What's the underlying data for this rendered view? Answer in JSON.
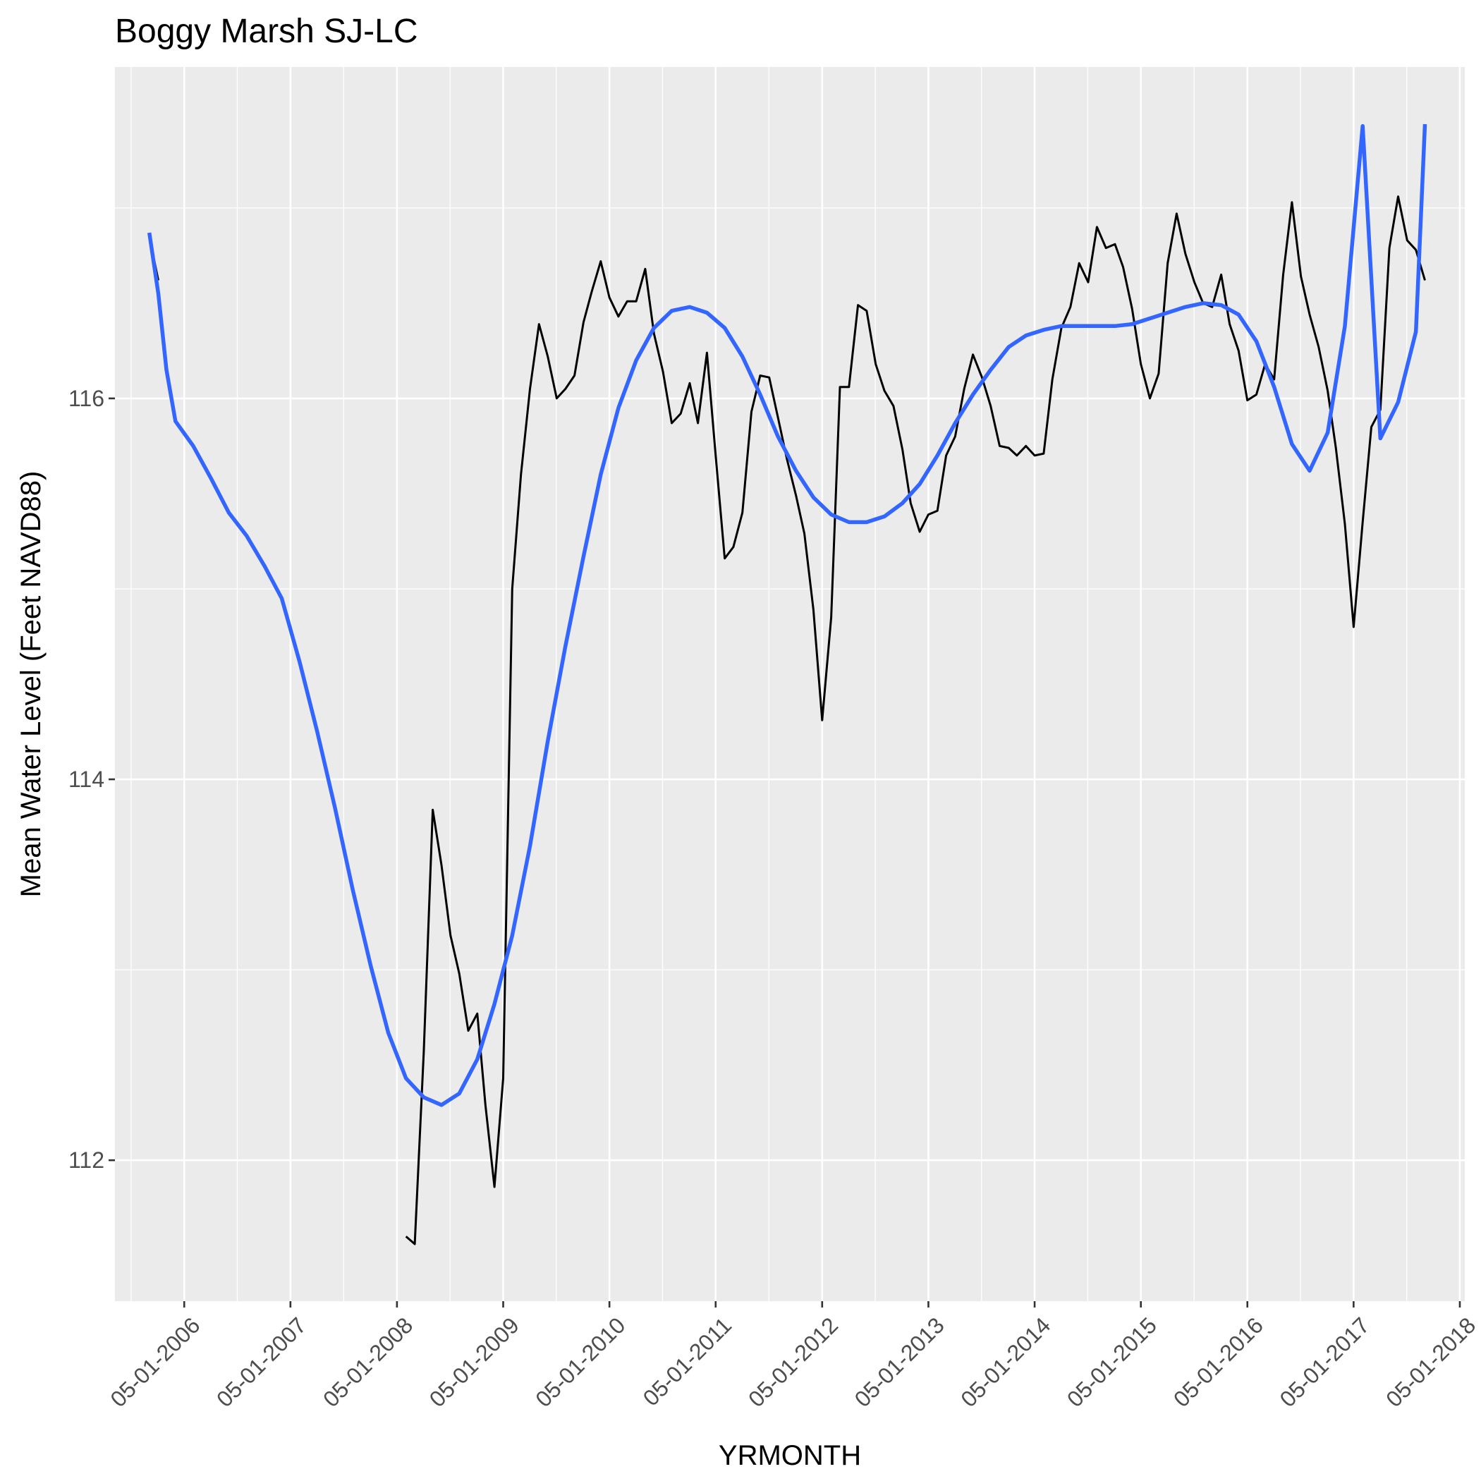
{
  "chart_data": {
    "type": "line",
    "title": "Boggy Marsh SJ-LC",
    "xlabel": "YRMONTH",
    "ylabel": "Mean Water Level (Feet NAVD88)",
    "x_type": "date",
    "x_ticks": [
      "2006-05-01",
      "2007-05-01",
      "2008-05-01",
      "2009-05-01",
      "2010-05-01",
      "2011-05-01",
      "2012-05-01",
      "2013-05-01",
      "2014-05-01",
      "2015-05-01",
      "2016-05-01",
      "2017-05-01",
      "2018-05-01"
    ],
    "x_tick_labels": [
      "05-01-2006",
      "05-01-2007",
      "05-01-2008",
      "05-01-2009",
      "05-01-2010",
      "05-01-2011",
      "05-01-2012",
      "05-01-2013",
      "05-01-2014",
      "05-01-2015",
      "05-01-2016",
      "05-01-2017",
      "05-01-2018"
    ],
    "x_range": [
      "2005-09-05",
      "2018-05-18"
    ],
    "y_ticks": [
      112,
      114,
      116
    ],
    "y_tick_labels": [
      "112",
      "114",
      "116"
    ],
    "ylim": [
      111.26,
      117.74
    ],
    "grid": true,
    "panel_background": "#ebebeb",
    "grid_color": "#ffffff",
    "series": [
      {
        "color": "#000000",
        "segments": [
          {
            "x": [
              "2006-01-01",
              "2006-02-01"
            ],
            "y": [
              116.85,
              116.62
            ]
          },
          {
            "x": [
              "2008-06-01",
              "2008-07-01",
              "2008-08-01",
              "2008-09-01",
              "2008-10-01",
              "2008-11-01",
              "2008-12-01",
              "2009-01-01",
              "2009-02-01",
              "2009-03-01",
              "2009-04-01",
              "2009-05-01",
              "2009-06-01",
              "2009-07-01",
              "2009-08-01",
              "2009-09-01",
              "2009-10-01",
              "2009-11-01",
              "2009-12-01",
              "2010-01-01",
              "2010-02-01",
              "2010-03-01",
              "2010-04-01",
              "2010-05-01",
              "2010-06-01",
              "2010-07-01",
              "2010-08-01",
              "2010-09-01",
              "2010-10-01",
              "2010-11-01",
              "2010-12-01",
              "2011-01-01",
              "2011-02-01",
              "2011-03-01",
              "2011-04-01",
              "2011-05-01",
              "2011-06-01",
              "2011-07-01",
              "2011-08-01",
              "2011-09-01",
              "2011-10-01",
              "2011-11-01",
              "2011-12-01",
              "2012-01-01",
              "2012-02-01",
              "2012-03-01",
              "2012-04-01",
              "2012-05-01",
              "2012-06-01",
              "2012-07-01",
              "2012-08-01",
              "2012-09-01",
              "2012-10-01",
              "2012-11-01",
              "2012-12-01",
              "2013-01-01",
              "2013-02-01",
              "2013-03-01",
              "2013-04-01",
              "2013-05-01",
              "2013-06-01",
              "2013-07-01",
              "2013-08-01",
              "2013-09-01",
              "2013-10-01",
              "2013-11-01",
              "2013-12-01",
              "2014-01-01",
              "2014-02-01",
              "2014-03-01",
              "2014-04-01",
              "2014-05-01",
              "2014-06-01",
              "2014-07-01",
              "2014-08-01",
              "2014-09-01",
              "2014-10-01",
              "2014-11-01",
              "2014-12-01",
              "2015-01-01",
              "2015-02-01",
              "2015-03-01",
              "2015-04-01",
              "2015-05-01",
              "2015-06-01",
              "2015-07-01",
              "2015-08-01",
              "2015-09-01",
              "2015-10-01",
              "2015-11-01",
              "2015-12-01",
              "2016-01-01",
              "2016-02-01",
              "2016-03-01",
              "2016-04-01",
              "2016-05-01",
              "2016-06-01",
              "2016-07-01",
              "2016-08-01",
              "2016-09-01",
              "2016-10-01",
              "2016-11-01",
              "2016-12-01",
              "2017-01-01",
              "2017-02-01",
              "2017-03-01",
              "2017-04-01",
              "2017-05-01",
              "2017-06-01",
              "2017-07-01",
              "2017-08-01",
              "2017-09-01",
              "2017-10-01",
              "2017-11-01",
              "2017-12-01",
              "2018-01-01"
            ],
            "y": [
              111.6,
              111.56,
              112.57,
              113.84,
              113.55,
              113.18,
              112.98,
              112.68,
              112.77,
              112.29,
              111.86,
              112.43,
              115.0,
              115.6,
              116.05,
              116.39,
              116.22,
              116.0,
              116.05,
              116.12,
              116.4,
              116.56,
              116.72,
              116.53,
              116.43,
              116.51,
              116.51,
              116.68,
              116.34,
              116.14,
              115.87,
              115.92,
              116.08,
              115.87,
              116.24,
              115.7,
              115.16,
              115.22,
              115.4,
              115.93,
              116.12,
              116.11,
              115.9,
              115.68,
              115.49,
              115.29,
              114.89,
              114.31,
              114.85,
              116.06,
              116.06,
              116.49,
              116.46,
              116.18,
              116.04,
              115.96,
              115.73,
              115.45,
              115.3,
              115.39,
              115.41,
              115.7,
              115.8,
              116.05,
              116.23,
              116.11,
              115.96,
              115.75,
              115.74,
              115.7,
              115.75,
              115.7,
              115.71,
              116.1,
              116.37,
              116.48,
              116.71,
              116.61,
              116.9,
              116.79,
              116.81,
              116.69,
              116.47,
              116.18,
              116.0,
              116.13,
              116.71,
              116.97,
              116.76,
              116.61,
              116.5,
              116.48,
              116.65,
              116.39,
              116.25,
              115.99,
              116.02,
              116.18,
              116.1,
              116.65,
              117.03,
              116.64,
              116.44,
              116.27,
              116.04,
              115.74,
              115.34,
              114.8,
              115.35,
              115.85,
              115.94,
              116.79,
              117.06,
              116.83,
              116.78,
              116.62
            ]
          }
        ]
      },
      {
        "color": "#3366ff",
        "segments": [
          {
            "x": [
              "2006-01-01",
              "2006-02-01",
              "2006-03-01",
              "2006-04-01",
              "2006-06-01",
              "2006-08-01",
              "2006-10-01",
              "2006-12-01",
              "2007-02-01",
              "2007-04-01",
              "2007-06-01",
              "2007-08-01",
              "2007-10-01",
              "2007-12-01",
              "2008-02-01",
              "2008-04-01",
              "2008-06-01",
              "2008-08-01",
              "2008-10-01",
              "2008-12-01",
              "2009-02-01",
              "2009-04-01",
              "2009-06-01",
              "2009-08-01",
              "2009-10-01",
              "2009-12-01",
              "2010-02-01",
              "2010-04-01",
              "2010-06-01",
              "2010-08-01",
              "2010-10-01",
              "2010-12-01",
              "2011-02-01",
              "2011-04-01",
              "2011-06-01",
              "2011-08-01",
              "2011-10-01",
              "2011-12-01",
              "2012-02-01",
              "2012-04-01",
              "2012-06-01",
              "2012-08-01",
              "2012-10-01",
              "2012-12-01",
              "2013-02-01",
              "2013-04-01",
              "2013-06-01",
              "2013-08-01",
              "2013-10-01",
              "2013-12-01",
              "2014-02-01",
              "2014-04-01",
              "2014-06-01",
              "2014-08-01",
              "2014-10-01",
              "2014-12-01",
              "2015-02-01",
              "2015-04-01",
              "2015-06-01",
              "2015-08-01",
              "2015-10-01",
              "2015-12-01",
              "2016-02-01",
              "2016-04-01",
              "2016-06-01",
              "2016-08-01",
              "2016-10-01",
              "2016-12-01",
              "2017-02-01",
              "2017-04-01",
              "2017-06-01",
              "2017-08-01",
              "2017-10-01",
              "2017-12-01",
              "2018-01-01"
            ],
            "y": [
              116.87,
              116.55,
              116.15,
              115.88,
              115.75,
              115.58,
              115.4,
              115.28,
              115.12,
              114.95,
              114.62,
              114.25,
              113.85,
              113.42,
              113.02,
              112.67,
              112.43,
              112.33,
              112.29,
              112.35,
              112.53,
              112.82,
              113.18,
              113.65,
              114.2,
              114.7,
              115.17,
              115.6,
              115.95,
              116.2,
              116.37,
              116.46,
              116.48,
              116.45,
              116.37,
              116.22,
              116.02,
              115.8,
              115.62,
              115.48,
              115.39,
              115.35,
              115.35,
              115.38,
              115.45,
              115.55,
              115.7,
              115.87,
              116.02,
              116.15,
              116.27,
              116.33,
              116.36,
              116.38,
              116.38,
              116.38,
              116.38,
              116.39,
              116.42,
              116.45,
              116.48,
              116.5,
              116.49,
              116.44,
              116.3,
              116.06,
              115.76,
              115.62,
              115.82,
              116.38,
              117.43,
              115.79,
              115.98,
              116.35,
              117.44
            ]
          }
        ]
      }
    ]
  }
}
